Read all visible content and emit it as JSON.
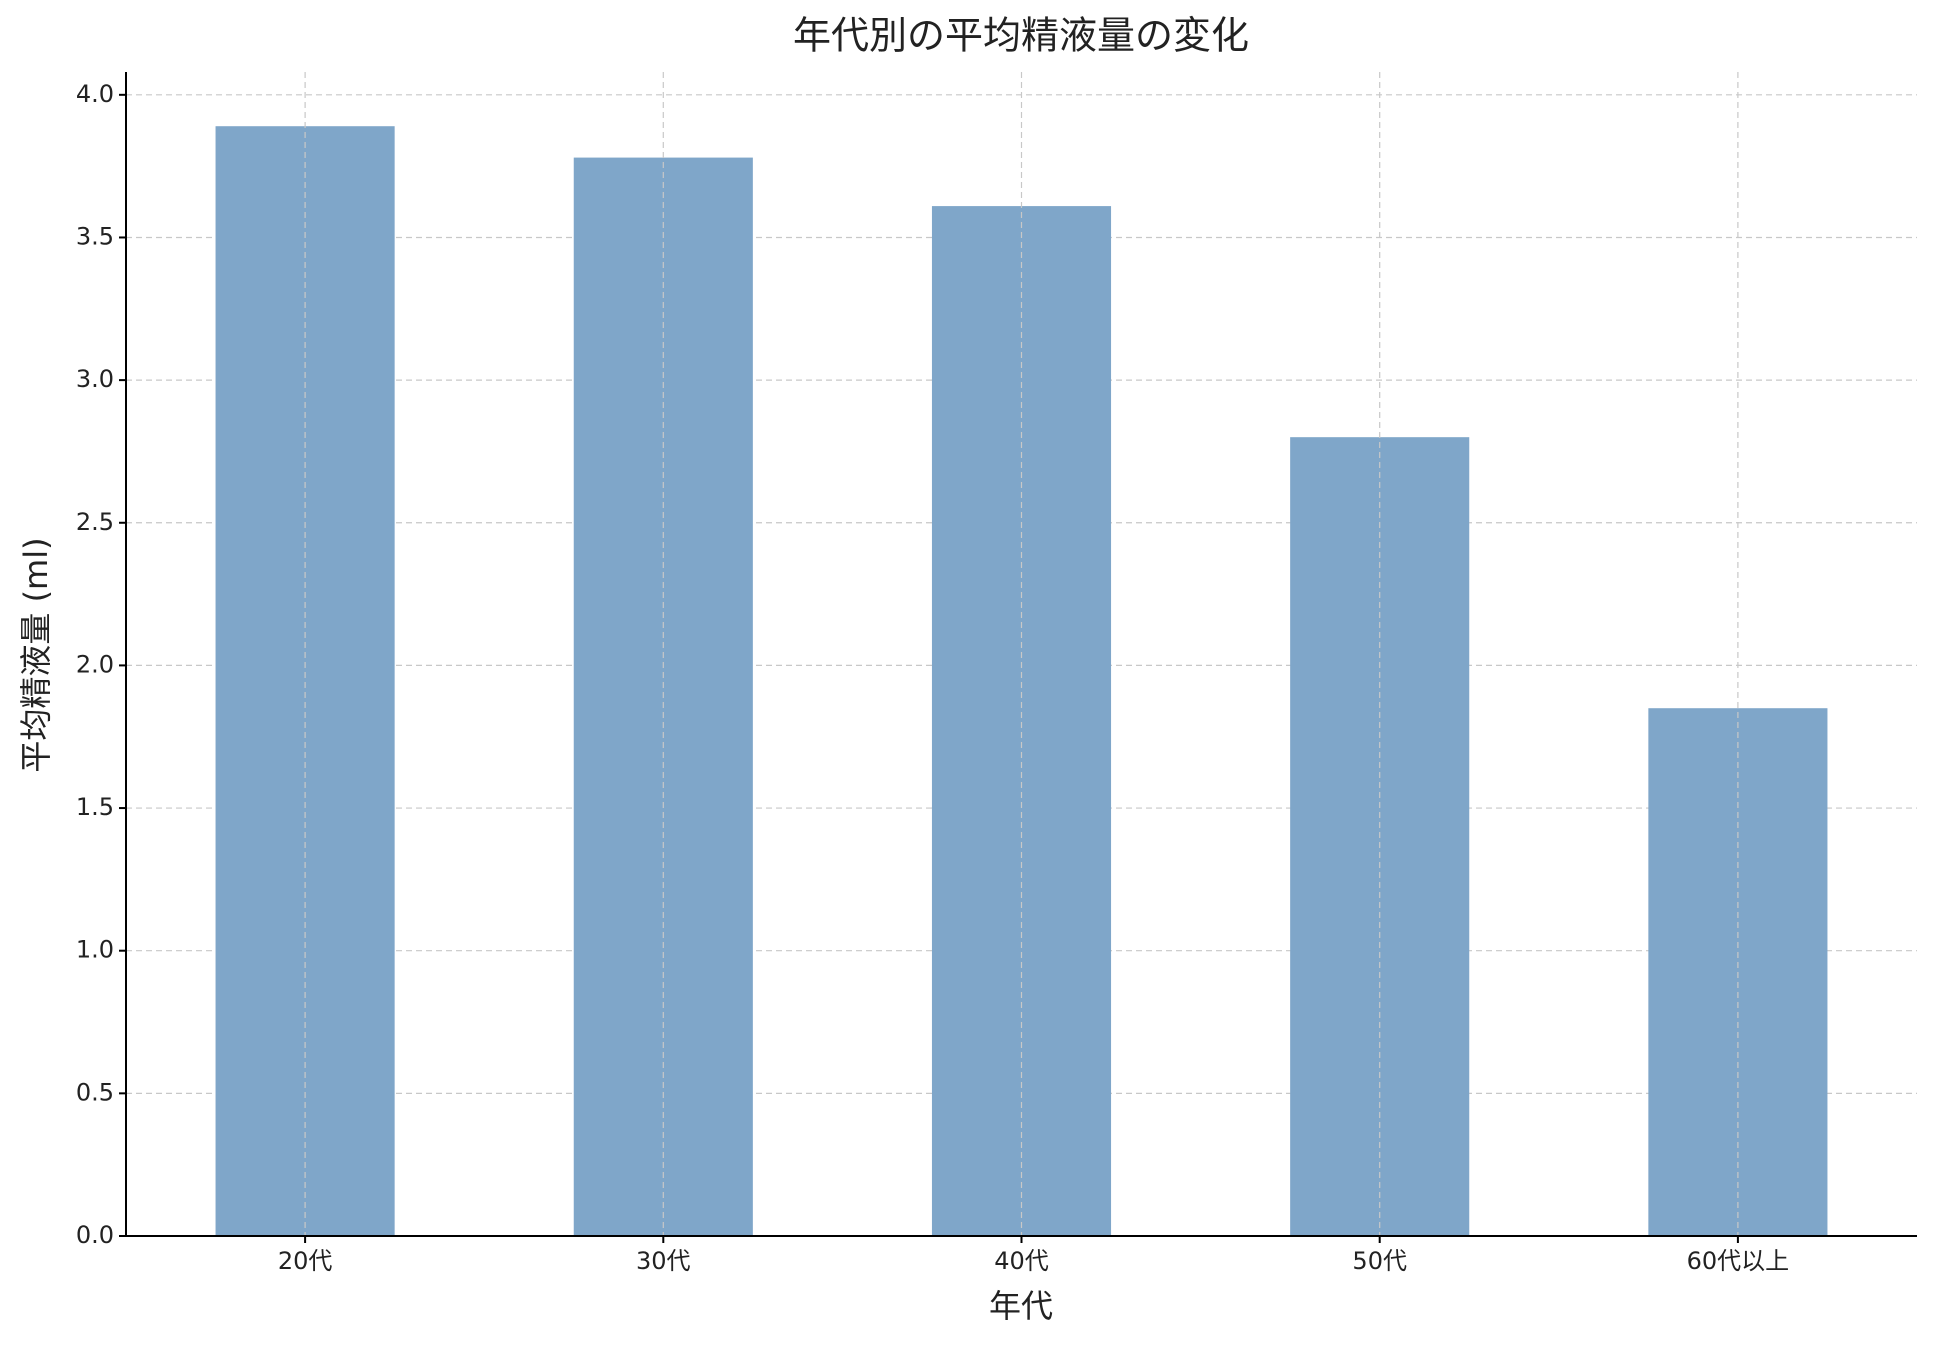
{
  "chart_data": {
    "type": "bar",
    "title": "年代別の平均精液量の変化",
    "x_label": "年代",
    "y_label": "平均精液量 (ml)",
    "categories": [
      "20代",
      "30代",
      "40代",
      "50代",
      "60代以上"
    ],
    "values": [
      3.89,
      3.78,
      3.61,
      2.8,
      1.85
    ],
    "color": "#7fa6c9",
    "ylim": [
      0,
      4.08
    ],
    "yticks": [
      {
        "value": 0,
        "label": "0.0"
      },
      {
        "value": 0.5,
        "label": "0.5"
      },
      {
        "value": 1,
        "label": "1.0"
      },
      {
        "value": 1.5,
        "label": "1.5"
      },
      {
        "value": 2,
        "label": "2.0"
      },
      {
        "value": 2.5,
        "label": "2.5"
      },
      {
        "value": 3,
        "label": "3.0"
      },
      {
        "value": 3.5,
        "label": "3.5"
      },
      {
        "value": 4,
        "label": "4.0"
      }
    ],
    "grid": true
  }
}
